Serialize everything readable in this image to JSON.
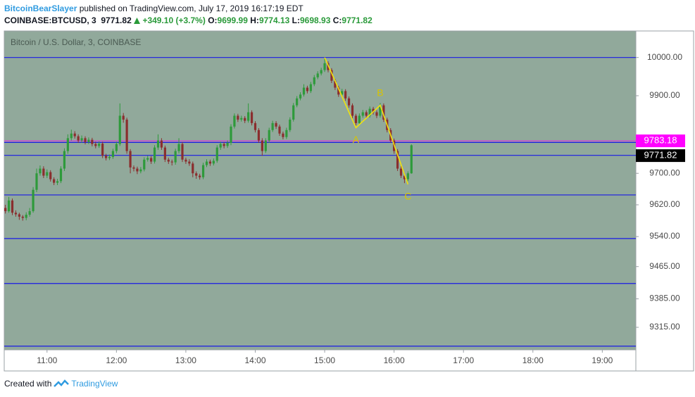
{
  "header": {
    "author": "BitcoinBearSlayer",
    "published": "published on TradingView.com, July 17, 2019 16:17:19 EDT"
  },
  "footer": {
    "created_with": "Created with",
    "brand": "TradingView"
  },
  "chart_data": {
    "type": "candlestick",
    "symbol": "COINBASE:BTCUSD, 3",
    "change": "+349.10 (+3.7%)",
    "ohlc_labels": [
      "O:",
      "H:",
      "L:",
      "C:"
    ],
    "title": "Bitcoin / U.S. Dollar, 3, COINBASE",
    "background": "#91a99b",
    "up_color": "#2e9a3b",
    "down_color": "#8a2e2e",
    "x": [
      "10:24",
      "10:27",
      "10:30",
      "10:33",
      "10:36",
      "10:39",
      "10:42",
      "10:45",
      "10:48",
      "10:51",
      "10:54",
      "10:57",
      "11:00",
      "11:03",
      "11:06",
      "11:09",
      "11:12",
      "11:15",
      "11:18",
      "11:21",
      "11:24",
      "11:27",
      "11:30",
      "11:33",
      "11:36",
      "11:39",
      "11:42",
      "11:45",
      "11:48",
      "11:51",
      "11:54",
      "11:57",
      "12:00",
      "12:03",
      "12:06",
      "12:09",
      "12:12",
      "12:15",
      "12:18",
      "12:21",
      "12:24",
      "12:27",
      "12:30",
      "12:33",
      "12:36",
      "12:39",
      "12:42",
      "12:45",
      "12:48",
      "12:51",
      "12:54",
      "12:57",
      "13:00",
      "13:03",
      "13:06",
      "13:09",
      "13:12",
      "13:15",
      "13:18",
      "13:21",
      "13:24",
      "13:27",
      "13:30",
      "13:33",
      "13:36",
      "13:39",
      "13:42",
      "13:45",
      "13:48",
      "13:51",
      "13:54",
      "13:57",
      "14:00",
      "14:03",
      "14:06",
      "14:09",
      "14:12",
      "14:15",
      "14:18",
      "14:21",
      "14:24",
      "14:27",
      "14:30",
      "14:33",
      "14:36",
      "14:39",
      "14:42",
      "14:45",
      "14:48",
      "14:51",
      "14:54",
      "14:57",
      "15:00",
      "15:03",
      "15:06",
      "15:09",
      "15:12",
      "15:15",
      "15:18",
      "15:21",
      "15:24",
      "15:27",
      "15:30",
      "15:33",
      "15:36",
      "15:39",
      "15:42",
      "15:45",
      "15:48",
      "15:51",
      "15:54",
      "15:57",
      "16:00",
      "16:03",
      "16:06",
      "16:09",
      "16:12",
      "16:15"
    ],
    "values": [
      [
        9612,
        9620,
        9598,
        9604
      ],
      [
        9604,
        9640,
        9600,
        9631
      ],
      [
        9631,
        9636,
        9594,
        9600
      ],
      [
        9600,
        9606,
        9590,
        9596
      ],
      [
        9596,
        9600,
        9582,
        9590
      ],
      [
        9590,
        9594,
        9580,
        9587
      ],
      [
        9587,
        9601,
        9581,
        9595
      ],
      [
        9595,
        9612,
        9590,
        9604
      ],
      [
        9604,
        9665,
        9600,
        9658
      ],
      [
        9658,
        9712,
        9652,
        9700
      ],
      [
        9700,
        9720,
        9694,
        9712
      ],
      [
        9712,
        9718,
        9688,
        9694
      ],
      [
        9694,
        9710,
        9688,
        9703
      ],
      [
        9703,
        9708,
        9679,
        9685
      ],
      [
        9685,
        9690,
        9670,
        9676
      ],
      [
        9676,
        9686,
        9670,
        9680
      ],
      [
        9680,
        9718,
        9675,
        9712
      ],
      [
        9712,
        9764,
        9706,
        9757
      ],
      [
        9757,
        9800,
        9750,
        9790
      ],
      [
        9790,
        9812,
        9784,
        9802
      ],
      [
        9802,
        9808,
        9789,
        9795
      ],
      [
        9795,
        9800,
        9778,
        9784
      ],
      [
        9784,
        9797,
        9778,
        9790
      ],
      [
        9790,
        9795,
        9774,
        9780
      ],
      [
        9780,
        9792,
        9775,
        9786
      ],
      [
        9786,
        9791,
        9769,
        9775
      ],
      [
        9775,
        9781,
        9764,
        9770
      ],
      [
        9770,
        9782,
        9765,
        9776
      ],
      [
        9776,
        9781,
        9739,
        9745
      ],
      [
        9745,
        9750,
        9733,
        9739
      ],
      [
        9739,
        9748,
        9734,
        9742
      ],
      [
        9742,
        9763,
        9737,
        9757
      ],
      [
        9757,
        9781,
        9751,
        9775
      ],
      [
        9775,
        9880,
        9770,
        9848
      ],
      [
        9848,
        9855,
        9830,
        9838
      ],
      [
        9838,
        9843,
        9750,
        9757
      ],
      [
        9757,
        9762,
        9700,
        9715
      ],
      [
        9715,
        9720,
        9705,
        9712
      ],
      [
        9712,
        9717,
        9698,
        9705
      ],
      [
        9705,
        9716,
        9700,
        9710
      ],
      [
        9710,
        9741,
        9705,
        9735
      ],
      [
        9735,
        9745,
        9730,
        9739
      ],
      [
        9739,
        9744,
        9724,
        9730
      ],
      [
        9730,
        9772,
        9725,
        9766
      ],
      [
        9766,
        9800,
        9760,
        9784
      ],
      [
        9784,
        9790,
        9760,
        9766
      ],
      [
        9766,
        9771,
        9729,
        9735
      ],
      [
        9735,
        9740,
        9724,
        9730
      ],
      [
        9730,
        9735,
        9720,
        9728
      ],
      [
        9728,
        9763,
        9722,
        9757
      ],
      [
        9757,
        9790,
        9751,
        9775
      ],
      [
        9775,
        9780,
        9729,
        9735
      ],
      [
        9735,
        9740,
        9724,
        9730
      ],
      [
        9730,
        9736,
        9719,
        9725
      ],
      [
        9725,
        9730,
        9690,
        9700
      ],
      [
        9700,
        9705,
        9686,
        9694
      ],
      [
        9694,
        9699,
        9684,
        9690
      ],
      [
        9690,
        9727,
        9685,
        9721
      ],
      [
        9721,
        9736,
        9716,
        9730
      ],
      [
        9730,
        9735,
        9719,
        9725
      ],
      [
        9725,
        9738,
        9720,
        9732
      ],
      [
        9732,
        9772,
        9727,
        9766
      ],
      [
        9766,
        9781,
        9760,
        9775
      ],
      [
        9775,
        9780,
        9764,
        9770
      ],
      [
        9770,
        9784,
        9765,
        9778
      ],
      [
        9778,
        9826,
        9772,
        9820
      ],
      [
        9820,
        9854,
        9815,
        9848
      ],
      [
        9848,
        9853,
        9832,
        9838
      ],
      [
        9838,
        9848,
        9833,
        9842
      ],
      [
        9842,
        9847,
        9829,
        9835
      ],
      [
        9835,
        9880,
        9830,
        9857
      ],
      [
        9857,
        9862,
        9823,
        9829
      ],
      [
        9829,
        9834,
        9805,
        9811
      ],
      [
        9811,
        9816,
        9778,
        9784
      ],
      [
        9784,
        9790,
        9745,
        9757
      ],
      [
        9757,
        9790,
        9752,
        9784
      ],
      [
        9784,
        9817,
        9778,
        9811
      ],
      [
        9811,
        9835,
        9806,
        9829
      ],
      [
        9829,
        9834,
        9814,
        9820
      ],
      [
        9820,
        9825,
        9796,
        9802
      ],
      [
        9802,
        9807,
        9787,
        9793
      ],
      [
        9793,
        9817,
        9788,
        9811
      ],
      [
        9811,
        9844,
        9806,
        9838
      ],
      [
        9838,
        9881,
        9833,
        9875
      ],
      [
        9875,
        9899,
        9870,
        9893
      ],
      [
        9893,
        9909,
        9888,
        9903
      ],
      [
        9903,
        9930,
        9898,
        9921
      ],
      [
        9921,
        9926,
        9906,
        9912
      ],
      [
        9912,
        9936,
        9907,
        9930
      ],
      [
        9930,
        9954,
        9925,
        9948
      ],
      [
        9948,
        9964,
        9943,
        9958
      ],
      [
        9958,
        9973,
        9953,
        9967
      ],
      [
        9967,
        9998,
        9962,
        9985
      ],
      [
        9985,
        9990,
        9961,
        9967
      ],
      [
        9967,
        9972,
        9933,
        9939
      ],
      [
        9939,
        9944,
        9915,
        9921
      ],
      [
        9921,
        9926,
        9897,
        9903
      ],
      [
        9903,
        9918,
        9898,
        9912
      ],
      [
        9912,
        9917,
        9887,
        9893
      ],
      [
        9893,
        9898,
        9869,
        9875
      ],
      [
        9875,
        9880,
        9842,
        9848
      ],
      [
        9848,
        9853,
        9823,
        9829
      ],
      [
        9829,
        9854,
        9824,
        9848
      ],
      [
        9848,
        9863,
        9843,
        9857
      ],
      [
        9857,
        9862,
        9842,
        9848
      ],
      [
        9848,
        9872,
        9843,
        9866
      ],
      [
        9866,
        9871,
        9851,
        9857
      ],
      [
        9857,
        9862,
        9842,
        9848
      ],
      [
        9848,
        9881,
        9843,
        9875
      ],
      [
        9875,
        9880,
        9832,
        9838
      ],
      [
        9838,
        9843,
        9805,
        9811
      ],
      [
        9811,
        9816,
        9778,
        9784
      ],
      [
        9784,
        9789,
        9750,
        9757
      ],
      [
        9757,
        9762,
        9706,
        9712
      ],
      [
        9712,
        9718,
        9688,
        9694
      ],
      [
        9694,
        9700,
        9675,
        9685
      ],
      [
        9685,
        9705,
        9680,
        9699.99
      ],
      [
        9699.99,
        9774.13,
        9698.93,
        9771.82
      ]
    ],
    "xlim": [
      "10:23",
      "19:29"
    ],
    "xticks": [
      "11:00",
      "12:00",
      "13:00",
      "14:00",
      "15:00",
      "16:00",
      "17:00",
      "18:00",
      "19:00"
    ],
    "ylim": [
      9260,
      10070
    ],
    "log_scale": true,
    "yticks": [
      {
        "value": 10000,
        "label": "10000.00"
      },
      {
        "value": 9900,
        "label": "9900.00"
      },
      {
        "value": 9700,
        "label": "9700.00"
      },
      {
        "value": 9620,
        "label": "9620.00"
      },
      {
        "value": 9540,
        "label": "9540.00"
      },
      {
        "value": 9465,
        "label": "9465.00"
      },
      {
        "value": 9385,
        "label": "9385.00"
      },
      {
        "value": 9315,
        "label": "9315.00"
      }
    ],
    "levels": [
      {
        "value": 10000,
        "color": "#1a1ae6"
      },
      {
        "value": 9779,
        "color": "#1a1ae6"
      },
      {
        "value": 9746,
        "color": "#1a1ae6"
      },
      {
        "value": 9645,
        "color": "#1a1ae6"
      },
      {
        "value": 9535,
        "color": "#1a1ae6"
      },
      {
        "value": 9423,
        "color": "#1a1ae6"
      },
      {
        "value": 9269,
        "color": "#1a1ae6"
      }
    ],
    "marker_level": {
      "value": 9783.18,
      "color": "#ff00ff"
    },
    "pattern": {
      "color": "#f2e20c",
      "points": [
        {
          "x": "15:00",
          "y": 10000
        },
        {
          "x": "15:27",
          "y": 9817,
          "label": "A"
        },
        {
          "x": "15:48",
          "y": 9875,
          "label": "B"
        },
        {
          "x": "16:12",
          "y": 9672,
          "label": "C"
        }
      ]
    }
  }
}
